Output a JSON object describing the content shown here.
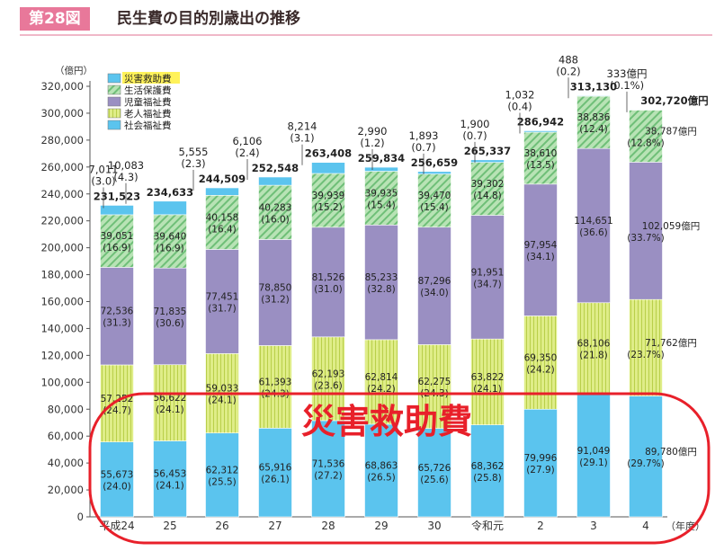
{
  "figure": {
    "label": "第28図",
    "title": "民生費の目的別歳出の推移"
  },
  "chart_data": {
    "type": "bar",
    "stacked": true,
    "y_unit": "（億円）",
    "x_unit": "（年度）",
    "ylim": [
      0,
      320000
    ],
    "y_ticks": [
      "0",
      "20,000",
      "40,000",
      "60,000",
      "80,000",
      "100,000",
      "120,000",
      "140,000",
      "160,000",
      "180,000",
      "200,000",
      "220,000",
      "240,000",
      "260,000",
      "280,000",
      "300,000",
      "320,000"
    ],
    "categories": [
      "平成24",
      "25",
      "26",
      "27",
      "28",
      "29",
      "30",
      "令和元",
      "2",
      "3",
      "4"
    ],
    "series": [
      {
        "name": "社会福祉費",
        "color": "#5bc4ee",
        "values": [
          55673,
          56453,
          62312,
          65916,
          71536,
          68863,
          65726,
          68362,
          79996,
          91049,
          89780
        ],
        "labels": [
          "55,673",
          "56,453",
          "62,312",
          "65,916",
          "71,536",
          "68,863",
          "65,726",
          "68,362",
          "79,996",
          "91,049",
          "89,780億円"
        ],
        "shares": [
          "(24.0)",
          "(24.1)",
          "(25.5)",
          "(26.1)",
          "(27.2)",
          "(26.5)",
          "(25.6)",
          "(25.8)",
          "(27.9)",
          "(29.1)",
          "(29.7%)"
        ]
      },
      {
        "name": "老人福祉費",
        "color": "#dcea7a",
        "values": [
          57252,
          56622,
          59033,
          61393,
          62193,
          62814,
          62275,
          63822,
          69350,
          68106,
          71762
        ],
        "labels": [
          "57,252",
          "56,622",
          "59,033",
          "61,393",
          "62,193",
          "62,814",
          "62,275",
          "63,822",
          "69,350",
          "68,106",
          "71,762億円"
        ],
        "shares": [
          "(24.7)",
          "(24.1)",
          "(24.1)",
          "(24.3)",
          "(23.6)",
          "(24.2)",
          "(24.3)",
          "(24.1)",
          "(24.2)",
          "(21.8)",
          "(23.7%)"
        ]
      },
      {
        "name": "児童福祉費",
        "color": "#9a8fc2",
        "values": [
          72536,
          71835,
          77451,
          78850,
          81526,
          85233,
          87296,
          91951,
          97954,
          114651,
          102059
        ],
        "labels": [
          "72,536",
          "71,835",
          "77,451",
          "78,850",
          "81,526",
          "85,233",
          "87,296",
          "91,951",
          "97,954",
          "114,651",
          "102,059億円"
        ],
        "shares": [
          "(31.3)",
          "(30.6)",
          "(31.7)",
          "(31.2)",
          "(31.0)",
          "(32.8)",
          "(34.0)",
          "(34.7)",
          "(34.1)",
          "(36.6)",
          "(33.7%)"
        ]
      },
      {
        "name": "生活保護費",
        "color": "#a9dca8",
        "values": [
          39051,
          39640,
          40158,
          40283,
          39939,
          39935,
          39470,
          39302,
          38610,
          38836,
          38787
        ],
        "labels": [
          "39,051",
          "39,640",
          "40,158",
          "40,283",
          "39,939",
          "39,935",
          "39,470",
          "39,302",
          "38,610",
          "38,836",
          "38,787億円"
        ],
        "shares": [
          "(16.9)",
          "(16.9)",
          "(16.4)",
          "(16.0)",
          "(15.2)",
          "(15.4)",
          "(15.4)",
          "(14.8)",
          "(13.5)",
          "(12.4)",
          "(12.8%)"
        ]
      },
      {
        "name": "災害救助費",
        "color": "#5bc4ee",
        "values": [
          7011,
          10083,
          5555,
          6106,
          8214,
          2990,
          1893,
          1900,
          1032,
          488,
          333
        ],
        "labels": [
          "7,011",
          "10,083",
          "5,555",
          "6,106",
          "8,214",
          "2,990",
          "1,893",
          "1,900",
          "1,032",
          "488",
          "333億円"
        ],
        "shares": [
          "(3.0)",
          "(4.3)",
          "(2.3)",
          "(2.4)",
          "(3.1)",
          "(1.2)",
          "(0.7)",
          "(0.7)",
          "(0.4)",
          "(0.2)",
          "(0.1%)"
        ]
      }
    ],
    "totals": [
      231523,
      234633,
      244509,
      252548,
      263408,
      259834,
      256659,
      265337,
      286942,
      313130,
      302720
    ],
    "total_labels": [
      "231,523",
      "234,633",
      "244,509",
      "252,548",
      "263,408",
      "259,834",
      "256,659",
      "265,337",
      "286,942",
      "313,130",
      "302,720億円"
    ],
    "legend": {
      "placement": "top-left",
      "order": [
        "災害救助費",
        "生活保護費",
        "児童福祉費",
        "老人福祉費",
        "社会福祉費"
      ]
    },
    "annotation": {
      "text": "災害救助費",
      "color": "#e8202a"
    }
  }
}
